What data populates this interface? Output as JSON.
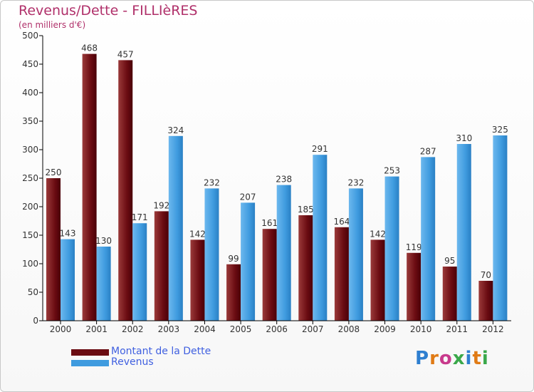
{
  "title": "Revenus/Dette - FILLIèRES",
  "subtitle": "(en milliers d'€)",
  "logo": "Proxiti",
  "colors": {
    "debt": "#6b0c12",
    "revenue": "#3f9bdf",
    "axis": "#000000",
    "grid": "#dddddd",
    "text": "#333333"
  },
  "chart_data": {
    "type": "bar",
    "categories": [
      "2000",
      "2001",
      "2002",
      "2003",
      "2004",
      "2005",
      "2006",
      "2007",
      "2008",
      "2009",
      "2010",
      "2011",
      "2012"
    ],
    "series": [
      {
        "name": "Montant de la Dette",
        "values": [
          250,
          468,
          457,
          192,
          142,
          99,
          161,
          185,
          164,
          142,
          119,
          95,
          70
        ]
      },
      {
        "name": "Revenus",
        "values": [
          143,
          130,
          171,
          324,
          232,
          207,
          238,
          291,
          232,
          253,
          287,
          310,
          325
        ]
      }
    ],
    "ylim": [
      0,
      500
    ],
    "yticks": [
      0,
      50,
      100,
      150,
      200,
      250,
      300,
      350,
      400,
      450,
      500
    ],
    "grid": false,
    "legend_position": "bottom-left"
  }
}
